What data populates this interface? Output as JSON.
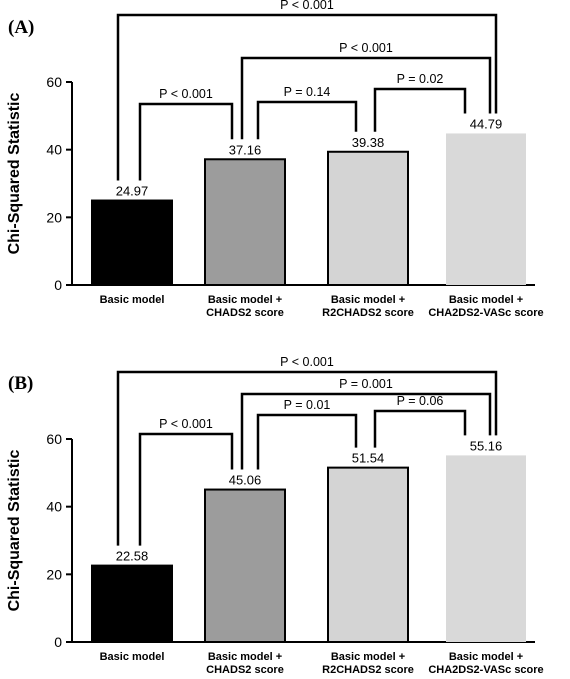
{
  "chart_data": [
    {
      "type": "bar",
      "panel_label": "(A)",
      "ylabel": "Chi-Squared Statistic",
      "ylim": [
        0,
        60
      ],
      "yticks": [
        0,
        20,
        40,
        60
      ],
      "categories": [
        [
          "Basic model"
        ],
        [
          "Basic model +",
          "CHADS2 score"
        ],
        [
          "Basic model +",
          "R2CHADS2 score"
        ],
        [
          "Basic model +",
          "CHA2DS2-VASc score"
        ]
      ],
      "values": [
        24.97,
        37.16,
        39.38,
        44.79
      ],
      "value_labels": [
        "24.97",
        "37.16",
        "39.38",
        "44.79"
      ],
      "bar_colors": [
        "#000000",
        "#9c9c9c",
        "#d4d4d4",
        "#d9d9d9"
      ],
      "bar_outline": [
        true,
        true,
        true,
        false
      ],
      "comparisons": [
        {
          "from": 0,
          "to": 1,
          "label": "P < 0.001"
        },
        {
          "from": 1,
          "to": 2,
          "label": "P = 0.14"
        },
        {
          "from": 2,
          "to": 3,
          "label": "P = 0.02"
        },
        {
          "from": 1,
          "to": 3,
          "label": "P < 0.001"
        },
        {
          "from": 0,
          "to": 3,
          "label": "P < 0.001"
        }
      ]
    },
    {
      "type": "bar",
      "panel_label": "(B)",
      "ylabel": "Chi-Squared Statistic",
      "ylim": [
        0,
        60
      ],
      "yticks": [
        0,
        20,
        40,
        60
      ],
      "categories": [
        [
          "Basic model"
        ],
        [
          "Basic model +",
          "CHADS2 score"
        ],
        [
          "Basic model +",
          "R2CHADS2 score"
        ],
        [
          "Basic model +",
          "CHA2DS2-VASc score"
        ]
      ],
      "values": [
        22.58,
        45.06,
        51.54,
        55.16
      ],
      "value_labels": [
        "22.58",
        "45.06",
        "51.54",
        "55.16"
      ],
      "bar_colors": [
        "#000000",
        "#9c9c9c",
        "#d4d4d4",
        "#d9d9d9"
      ],
      "bar_outline": [
        true,
        true,
        true,
        false
      ],
      "comparisons": [
        {
          "from": 0,
          "to": 1,
          "label": "P < 0.001"
        },
        {
          "from": 1,
          "to": 2,
          "label": "P = 0.01"
        },
        {
          "from": 2,
          "to": 3,
          "label": "P = 0.06"
        },
        {
          "from": 1,
          "to": 3,
          "label": "P = 0.001"
        },
        {
          "from": 0,
          "to": 3,
          "label": "P < 0.001"
        }
      ]
    }
  ]
}
